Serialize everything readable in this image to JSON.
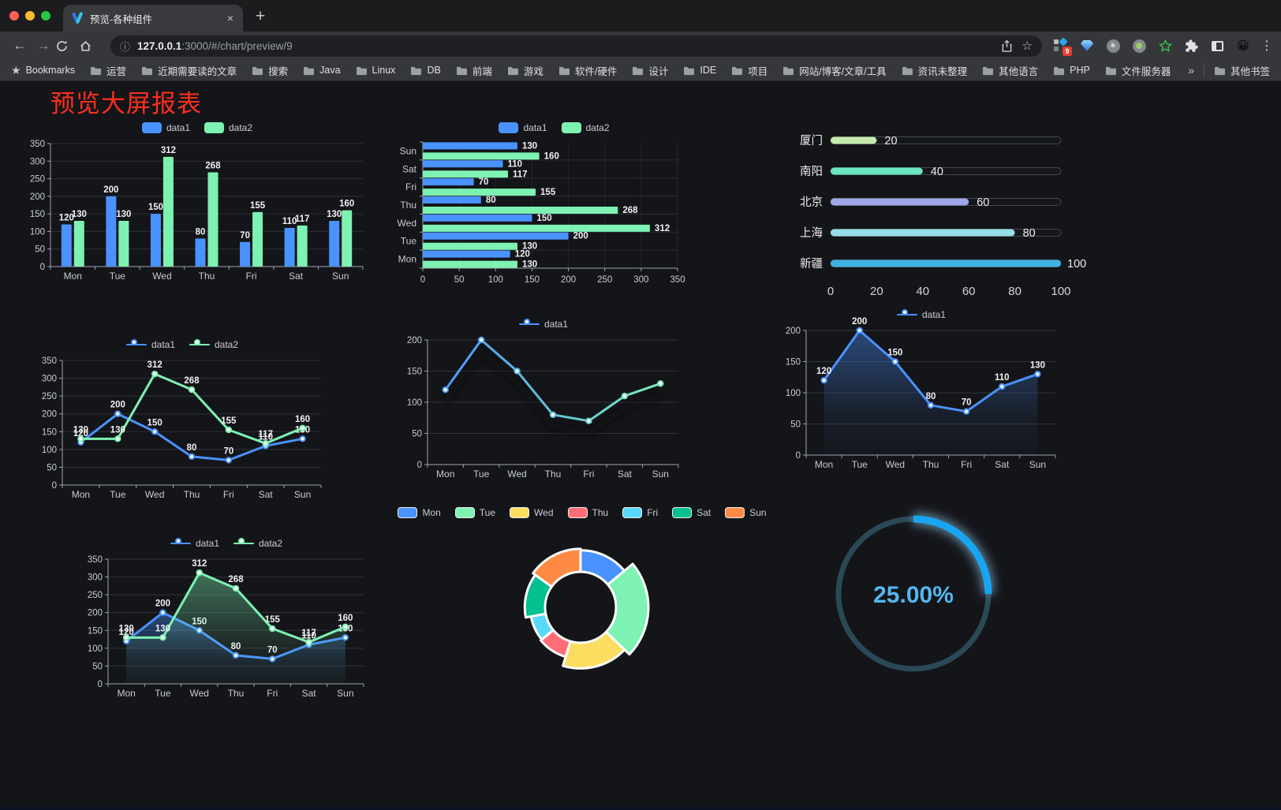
{
  "browser": {
    "tab_title": "预览-各种组件",
    "url_host": "127.0.0.1",
    "url_rest": ":3000/#/chart/preview/9",
    "bookmarks": [
      "Bookmarks",
      "运营",
      "近期需要读的文章",
      "搜索",
      "Java",
      "Linux",
      "DB",
      "前端",
      "游戏",
      "软件/硬件",
      "设计",
      "IDE",
      "项目",
      "网站/博客/文章/工具",
      "资讯未整理",
      "其他语言",
      "PHP",
      "文件服务器"
    ],
    "overflow": "»",
    "other_bookmarks": "其他书签",
    "ext_badge": "9"
  },
  "icons": {
    "close": "×",
    "plus": "+",
    "back": "←",
    "forward": "→",
    "info": "ⓘ",
    "star": "☆",
    "menu": "⋮",
    "emoji": "😀"
  },
  "page": {
    "title": "预览大屏报表",
    "title_color": "#fb2f1d",
    "background": "#141519"
  },
  "chart_data": [
    {
      "name": "grouped-bar",
      "type": "bar",
      "categories": [
        "Mon",
        "Tue",
        "Wed",
        "Thu",
        "Fri",
        "Sat",
        "Sun"
      ],
      "series": [
        {
          "name": "data1",
          "color": "#4992ff",
          "values": [
            120,
            200,
            150,
            80,
            70,
            110,
            130
          ]
        },
        {
          "name": "data2",
          "color": "#7df2b2",
          "values": [
            130,
            130,
            312,
            268,
            155,
            117,
            160
          ]
        }
      ],
      "ylim": [
        0,
        350
      ],
      "yticks": [
        0,
        50,
        100,
        150,
        200,
        250,
        300,
        350
      ],
      "legend": "bar",
      "labels": true,
      "grid": true
    },
    {
      "name": "grouped-bar-horizontal",
      "type": "hbar",
      "categories": [
        "Mon",
        "Tue",
        "Wed",
        "Thu",
        "Fri",
        "Sat",
        "Sun"
      ],
      "series": [
        {
          "name": "data1",
          "color": "#4992ff",
          "values": [
            120,
            200,
            150,
            80,
            70,
            110,
            130
          ]
        },
        {
          "name": "data2",
          "color": "#7df2b2",
          "values": [
            130,
            130,
            312,
            268,
            155,
            117,
            160
          ]
        }
      ],
      "xlim": [
        0,
        350
      ],
      "xticks": [
        0,
        50,
        100,
        150,
        200,
        250,
        300,
        350
      ],
      "legend": "bar",
      "labels": true,
      "grid": true
    },
    {
      "name": "progress-bars",
      "type": "progress",
      "items": [
        {
          "label": "厦门",
          "value": 20,
          "color": "#c4ebad"
        },
        {
          "label": "南阳",
          "value": 40,
          "color": "#6be6c1"
        },
        {
          "label": "北京",
          "value": 60,
          "color": "#a0a7e6"
        },
        {
          "label": "上海",
          "value": 80,
          "color": "#96dee8"
        },
        {
          "label": "新疆",
          "value": 100,
          "color": "#3fb1e3"
        }
      ],
      "max": 100,
      "xticks": [
        0,
        20,
        40,
        60,
        80,
        100
      ]
    },
    {
      "name": "line-dual",
      "type": "line",
      "categories": [
        "Mon",
        "Tue",
        "Wed",
        "Thu",
        "Fri",
        "Sat",
        "Sun"
      ],
      "series": [
        {
          "name": "data1",
          "color": "#4992ff",
          "values": [
            120,
            200,
            150,
            80,
            70,
            110,
            130
          ]
        },
        {
          "name": "data2",
          "color": "#7df2b2",
          "values": [
            130,
            130,
            312,
            268,
            155,
            117,
            160
          ]
        }
      ],
      "ylim": [
        0,
        350
      ],
      "yticks": [
        0,
        50,
        100,
        150,
        200,
        250,
        300,
        350
      ],
      "legend": "line",
      "labels": true,
      "grid": true
    },
    {
      "name": "line-gradient",
      "type": "line",
      "categories": [
        "Mon",
        "Tue",
        "Wed",
        "Thu",
        "Fri",
        "Sat",
        "Sun"
      ],
      "series": [
        {
          "name": "data1",
          "color": "#4992ff",
          "gradient": [
            "#4992ff",
            "#7df2b2"
          ],
          "values": [
            120,
            200,
            150,
            80,
            70,
            110,
            130
          ]
        }
      ],
      "ylim": [
        0,
        200
      ],
      "yticks": [
        0,
        50,
        100,
        150,
        200
      ],
      "legend": "line",
      "labels": false,
      "shadow": true,
      "grid": true
    },
    {
      "name": "area-single",
      "type": "line",
      "categories": [
        "Mon",
        "Tue",
        "Wed",
        "Thu",
        "Fri",
        "Sat",
        "Sun"
      ],
      "series": [
        {
          "name": "data1",
          "color": "#4992ff",
          "area": true,
          "values": [
            120,
            200,
            150,
            80,
            70,
            110,
            130
          ]
        }
      ],
      "ylim": [
        0,
        200
      ],
      "yticks": [
        0,
        50,
        100,
        150,
        200
      ],
      "legend": "line",
      "labels": true,
      "grid": true
    },
    {
      "name": "area-dual",
      "type": "line",
      "categories": [
        "Mon",
        "Tue",
        "Wed",
        "Thu",
        "Fri",
        "Sat",
        "Sun"
      ],
      "series": [
        {
          "name": "data1",
          "color": "#4992ff",
          "area": true,
          "values": [
            120,
            200,
            150,
            80,
            70,
            110,
            130
          ]
        },
        {
          "name": "data2",
          "color": "#7df2b2",
          "area": true,
          "values": [
            130,
            130,
            312,
            268,
            155,
            117,
            160
          ]
        }
      ],
      "ylim": [
        0,
        350
      ],
      "yticks": [
        0,
        50,
        100,
        150,
        200,
        250,
        300,
        350
      ],
      "legend": "line",
      "labels": true,
      "grid": true
    },
    {
      "name": "rose-pie",
      "type": "pie",
      "items": [
        {
          "name": "Mon",
          "value": 120,
          "color": "#4992ff"
        },
        {
          "name": "Tue",
          "value": 200,
          "color": "#7df2b2"
        },
        {
          "name": "Wed",
          "value": 150,
          "color": "#fddd60"
        },
        {
          "name": "Thu",
          "value": 80,
          "color": "#ff6e76"
        },
        {
          "name": "Fri",
          "value": 70,
          "color": "#58d9f9"
        },
        {
          "name": "Sat",
          "value": 110,
          "color": "#05c091"
        },
        {
          "name": "Sun",
          "value": 130,
          "color": "#ff8a45"
        }
      ],
      "legend": "pie",
      "rose": true
    },
    {
      "name": "gauge",
      "type": "gauge",
      "value": 25,
      "label": "25.00%",
      "color": "#18a6f2",
      "track": "#2b4856",
      "text_color": "#53b7f0"
    }
  ]
}
